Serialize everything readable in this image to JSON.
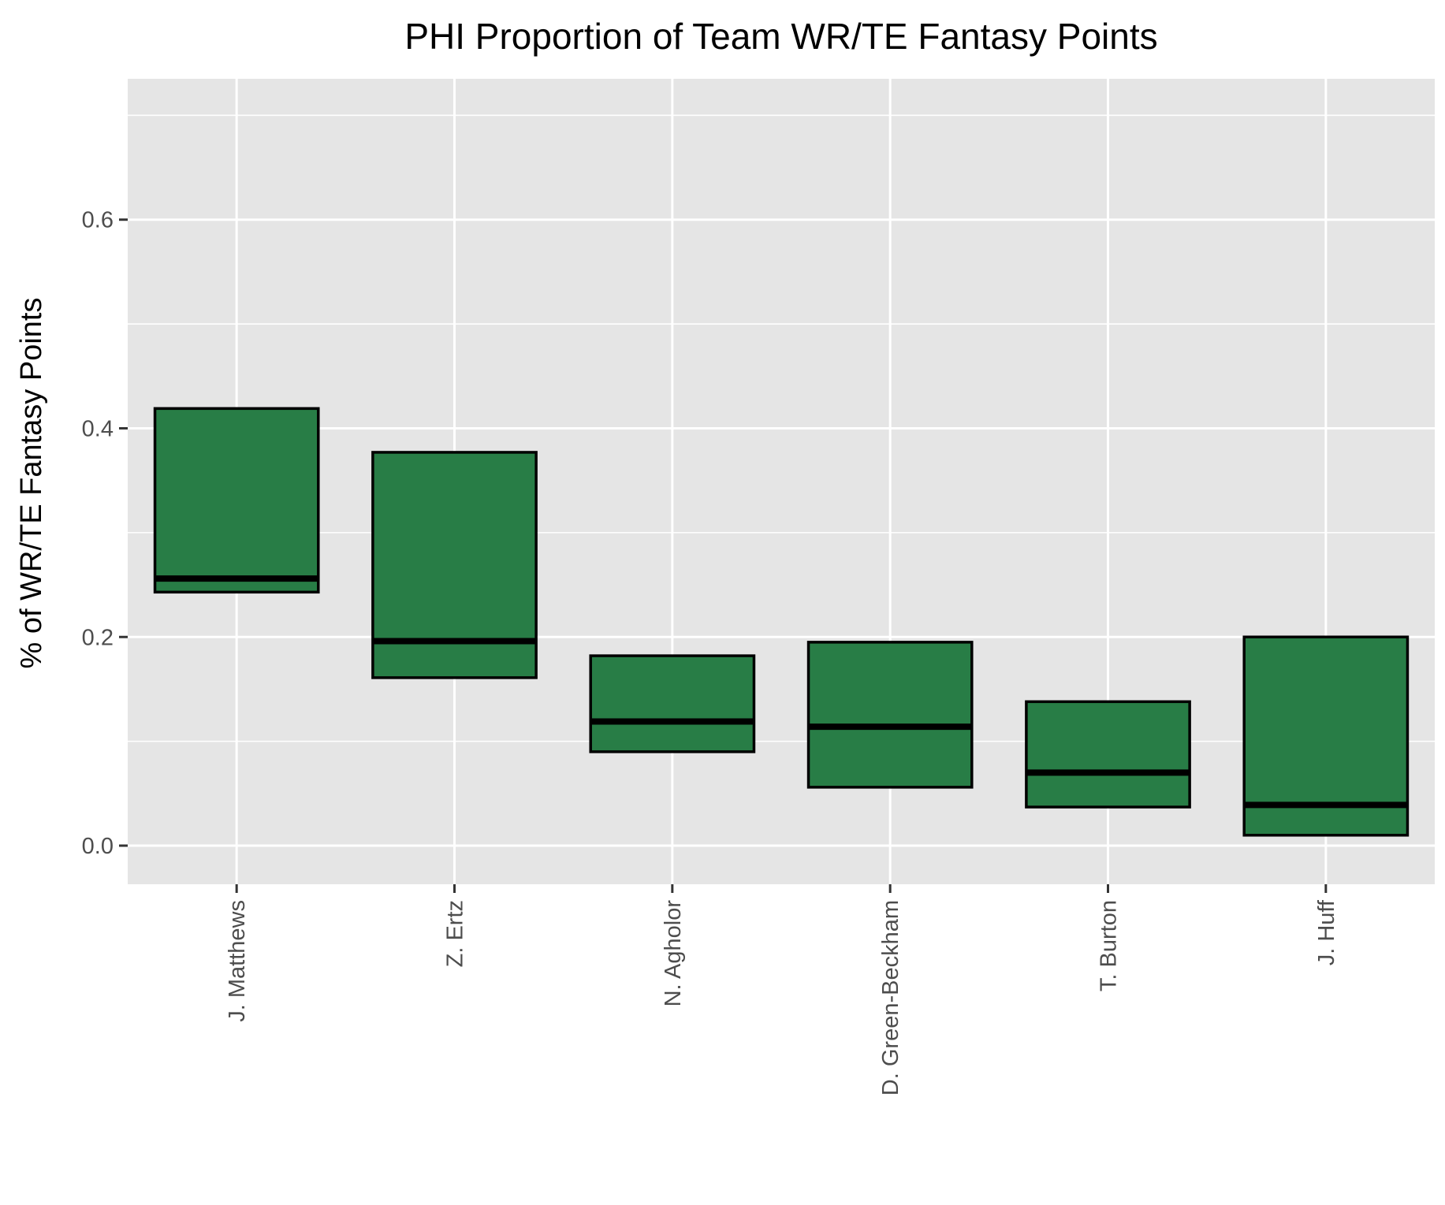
{
  "chart_data": {
    "type": "box",
    "title": "PHI Proportion of Team WR/TE Fantasy Points",
    "xlabel": "",
    "ylabel": "% of WR/TE Fantasy Points",
    "ylim": [
      -0.037,
      0.735
    ],
    "yticks": [
      "0.0",
      "0.2",
      "0.4",
      "0.6"
    ],
    "ytick_values": [
      0.0,
      0.2,
      0.4,
      0.6
    ],
    "grid": true,
    "legend": "none",
    "categories": [
      "J. Matthews",
      "Z. Ertz",
      "N. Agholor",
      "D. Green-Beckham",
      "T. Burton",
      "J. Huff"
    ],
    "boxes": [
      {
        "category": "J. Matthews",
        "q1": 0.243,
        "median": 0.256,
        "q3": 0.419
      },
      {
        "category": "Z. Ertz",
        "q1": 0.161,
        "median": 0.196,
        "q3": 0.377
      },
      {
        "category": "N. Agholor",
        "q1": 0.09,
        "median": 0.119,
        "q3": 0.182
      },
      {
        "category": "D. Green-Beckham",
        "q1": 0.056,
        "median": 0.114,
        "q3": 0.195
      },
      {
        "category": "T. Burton",
        "q1": 0.037,
        "median": 0.07,
        "q3": 0.138
      },
      {
        "category": "J. Huff",
        "q1": 0.01,
        "median": 0.039,
        "q3": 0.2
      }
    ],
    "colors": {
      "box_fill": "#287D46",
      "box_edge": "#000000",
      "panel_bg": "#E5E5E5",
      "grid": "#FFFFFF",
      "tick": "#333333"
    }
  }
}
